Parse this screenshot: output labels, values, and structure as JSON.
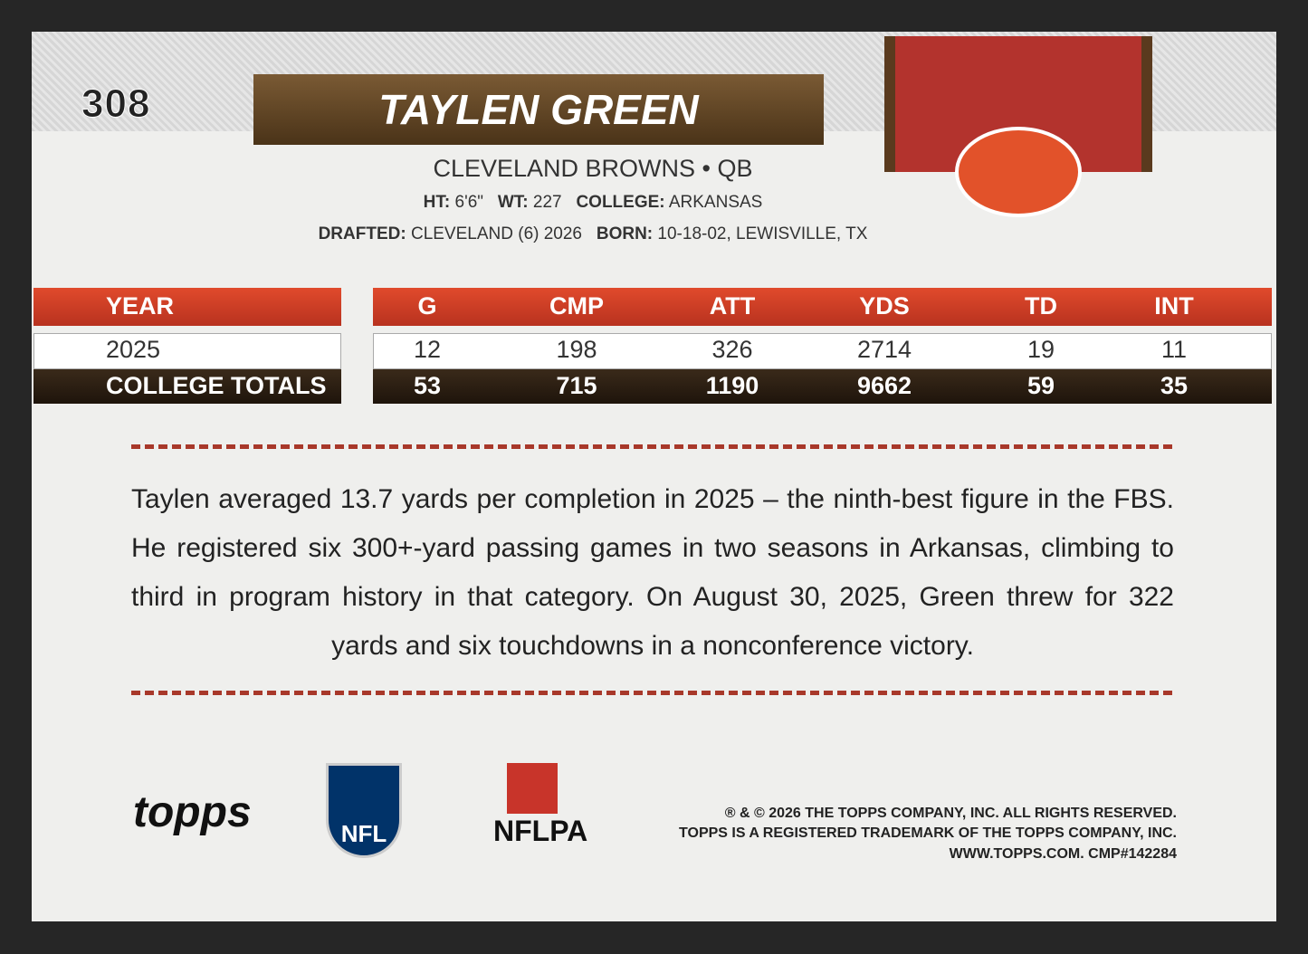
{
  "card": {
    "number": "308",
    "name": "TAYLEN GREEN",
    "team_line": "CLEVELAND BROWNS • QB",
    "bio": [
      {
        "label": "HT:",
        "value": "6'6\""
      },
      {
        "label": "WT:",
        "value": "227"
      },
      {
        "label": "COLLEGE:",
        "value": "ARKANSAS"
      },
      {
        "label": "DRAFTED:",
        "value": "CLEVELAND (6) 2026"
      },
      {
        "label": "BORN:",
        "value": "10-18-02, LEWISVILLE, TX"
      }
    ],
    "table": {
      "headers": [
        "YEAR",
        "G",
        "CMP",
        "ATT",
        "YDS",
        "TD",
        "INT"
      ],
      "rows": [
        [
          "2025",
          "12",
          "198",
          "326",
          "2714",
          "19",
          "11"
        ],
        [
          "COLLEGE TOTALS",
          "53",
          "715",
          "1190",
          "9662",
          "59",
          "35"
        ]
      ]
    },
    "blurb": "Taylen averaged 13.7 yards per completion in 2025 – the ninth-best figure in the FBS. He registered six 300+-yard passing games in two seasons in Arkansas, climbing to third in program history in that category. On August 30, 2025, Green threw for 322 yards and six touchdowns in a nonconference victory.",
    "logos": [
      "topps",
      "NFL",
      "NFLPA"
    ],
    "legal": [
      "® & © 2026 THE TOPPS COMPANY, INC. ALL RIGHTS RESERVED.",
      "TOPPS IS A REGISTERED TRADEMARK OF THE TOPPS COMPANY, INC.",
      "WWW.TOPPS.COM. CMP#142284"
    ]
  }
}
